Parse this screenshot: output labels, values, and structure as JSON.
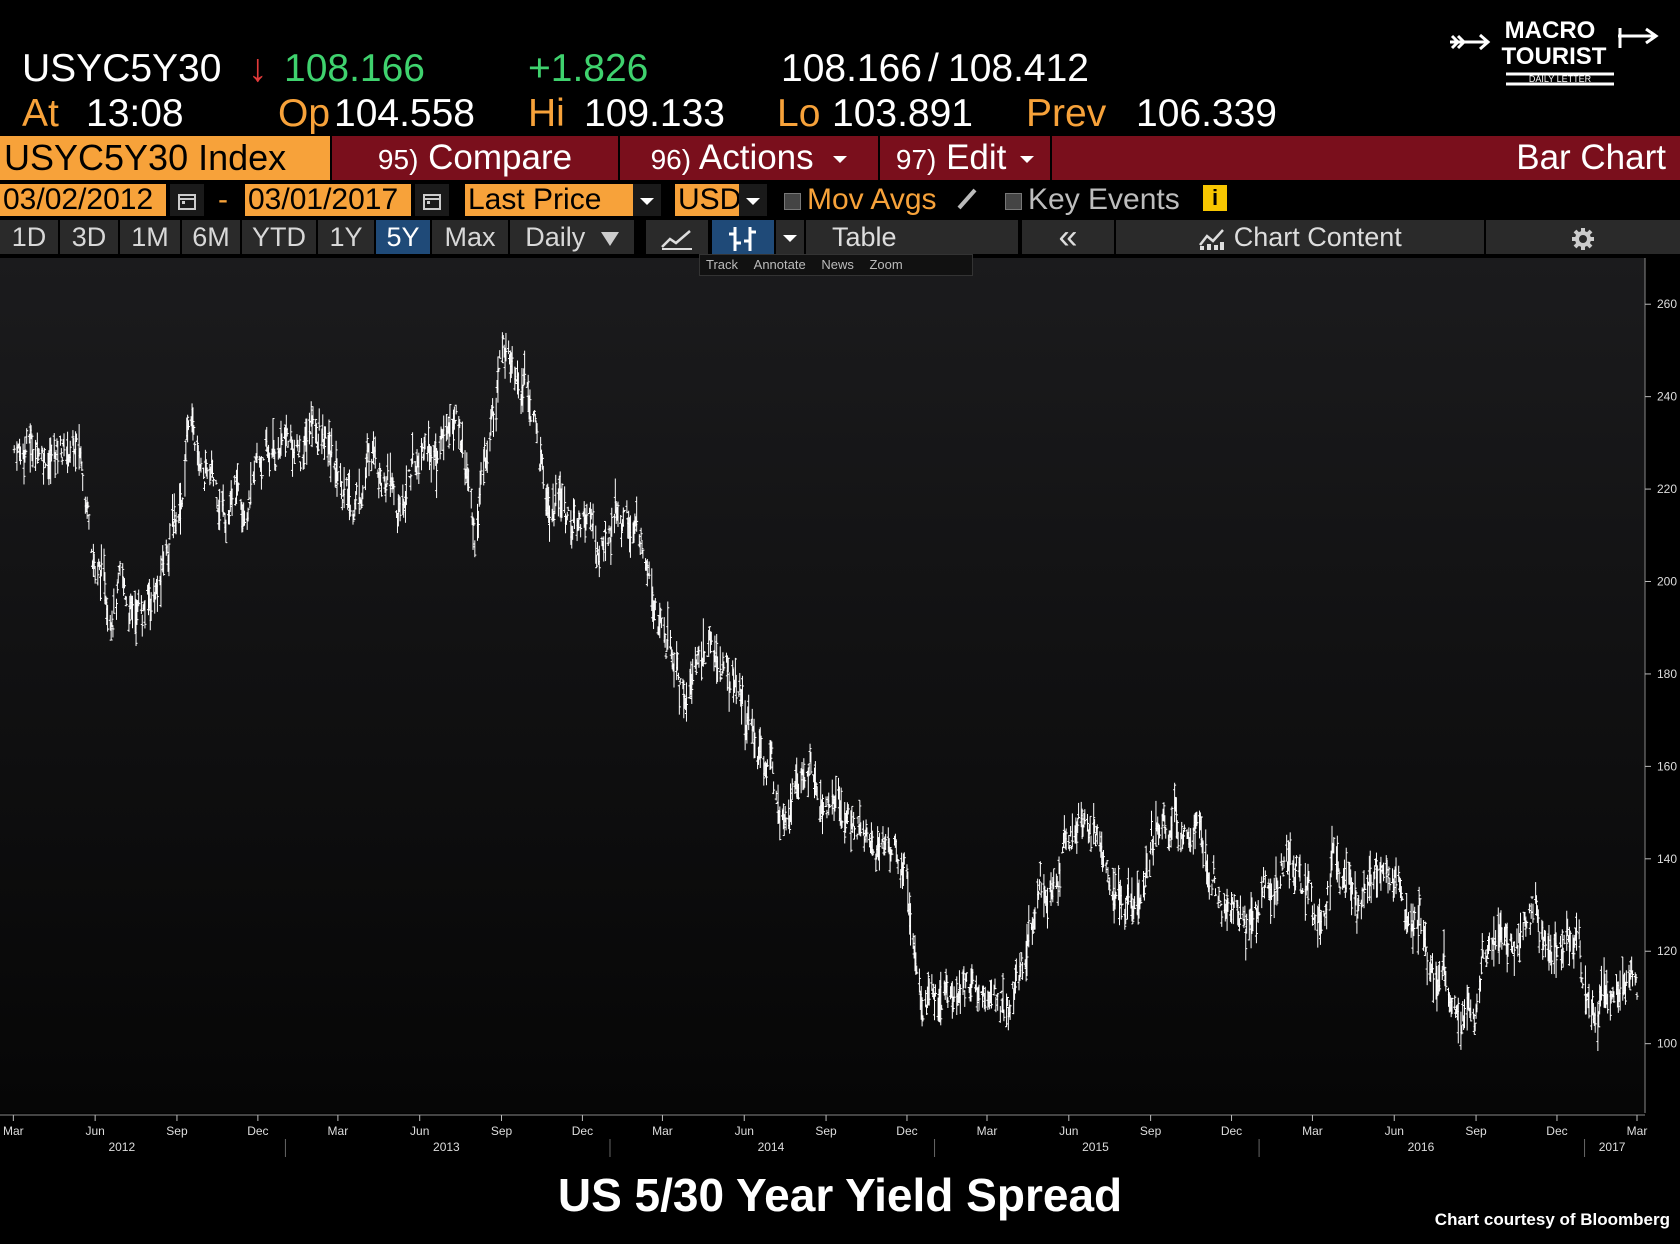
{
  "quote": {
    "ticker": "USYC5Y30",
    "arrow": "↓",
    "last": "108.166",
    "change": "+1.826",
    "bid": "108.166",
    "ask": "108.412",
    "sep": "/",
    "at_label": "At",
    "at_time": "13:08",
    "op_label": "Op",
    "op": "104.558",
    "hi_label": "Hi",
    "hi": "109.133",
    "lo_label": "Lo",
    "lo": "103.891",
    "prev_label": "Prev",
    "prev": "106.339"
  },
  "logo": {
    "line1": "MACRO",
    "line2": "TOURIST",
    "line3": "DAILY LETTER"
  },
  "menu": {
    "security": "USYC5Y30 Index",
    "compare_num": "95)",
    "compare": "Compare",
    "actions_num": "96)",
    "actions": "Actions",
    "edit_num": "97)",
    "edit": "Edit",
    "chart_type": "Bar Chart"
  },
  "controls": {
    "start_date": "03/02/2012",
    "dash": "-",
    "end_date": "03/01/2017",
    "field": "Last Price",
    "currency": "USD",
    "mov_avgs": "Mov Avgs",
    "key_events": "Key Events",
    "info": "i"
  },
  "periods": [
    "1D",
    "3D",
    "1M",
    "6M",
    "YTD",
    "1Y",
    "5Y",
    "Max"
  ],
  "selected_period": "5Y",
  "frequency": "Daily",
  "toolbar": {
    "table": "Table",
    "collapse": "«",
    "chart_content": "Chart Content",
    "mini_tools": [
      "Track",
      "Annotate",
      "News",
      "Zoom"
    ]
  },
  "chart_data": {
    "type": "bar",
    "title": "US 5/30 Year Yield Spread",
    "courtesy": "Chart courtesy of Bloomberg",
    "bar_color": "#ffffff",
    "background": "#0d0d0d",
    "ylim": [
      85,
      270
    ],
    "y_ticks": [
      100,
      120,
      140,
      160,
      180,
      200,
      220,
      240,
      260
    ],
    "x_range": [
      "2012-02-15",
      "2017-03-10"
    ],
    "x_month_ticks": [
      {
        "date": "2012-03-01",
        "label": "Mar"
      },
      {
        "date": "2012-06-01",
        "label": "Jun"
      },
      {
        "date": "2012-09-01",
        "label": "Sep"
      },
      {
        "date": "2012-12-01",
        "label": "Dec"
      },
      {
        "date": "2013-03-01",
        "label": "Mar"
      },
      {
        "date": "2013-06-01",
        "label": "Jun"
      },
      {
        "date": "2013-09-01",
        "label": "Sep"
      },
      {
        "date": "2013-12-01",
        "label": "Dec"
      },
      {
        "date": "2014-03-01",
        "label": "Mar"
      },
      {
        "date": "2014-06-01",
        "label": "Jun"
      },
      {
        "date": "2014-09-01",
        "label": "Sep"
      },
      {
        "date": "2014-12-01",
        "label": "Dec"
      },
      {
        "date": "2015-03-01",
        "label": "Mar"
      },
      {
        "date": "2015-06-01",
        "label": "Jun"
      },
      {
        "date": "2015-09-01",
        "label": "Sep"
      },
      {
        "date": "2015-12-01",
        "label": "Dec"
      },
      {
        "date": "2016-03-01",
        "label": "Mar"
      },
      {
        "date": "2016-06-01",
        "label": "Jun"
      },
      {
        "date": "2016-09-01",
        "label": "Sep"
      },
      {
        "date": "2016-12-01",
        "label": "Dec"
      },
      {
        "date": "2017-03-01",
        "label": "Mar"
      }
    ],
    "x_year_labels": [
      {
        "date": "2012-07-01",
        "label": "2012"
      },
      {
        "date": "2013-07-01",
        "label": "2013"
      },
      {
        "date": "2014-07-01",
        "label": "2014"
      },
      {
        "date": "2015-07-01",
        "label": "2015"
      },
      {
        "date": "2016-07-01",
        "label": "2016"
      },
      {
        "date": "2017-02-01",
        "label": "2017"
      }
    ],
    "x_year_dividers": [
      "2013-01-01",
      "2014-01-01",
      "2015-01-01",
      "2016-01-01",
      "2017-01-01"
    ],
    "series": [
      {
        "x": [
          "2012-03-02",
          "2012-03-23",
          "2012-04-13",
          "2012-05-04",
          "2012-05-18",
          "2012-06-01",
          "2012-06-15",
          "2012-06-29",
          "2012-07-13",
          "2012-07-27",
          "2012-08-10",
          "2012-08-24",
          "2012-09-07",
          "2012-09-14",
          "2012-09-28",
          "2012-10-12",
          "2012-10-26",
          "2012-11-09",
          "2012-11-23",
          "2012-12-07",
          "2012-12-21",
          "2013-01-04",
          "2013-01-18",
          "2013-02-01",
          "2013-02-15",
          "2013-03-01",
          "2013-03-15",
          "2013-03-29",
          "2013-04-12",
          "2013-04-26",
          "2013-05-10",
          "2013-05-24",
          "2013-06-07",
          "2013-06-21",
          "2013-07-05",
          "2013-07-19",
          "2013-08-02",
          "2013-08-16",
          "2013-08-30",
          "2013-09-13",
          "2013-09-27",
          "2013-10-11",
          "2013-10-25",
          "2013-11-08",
          "2013-11-22",
          "2013-12-06",
          "2013-12-20",
          "2014-01-03",
          "2014-01-17",
          "2014-01-31",
          "2014-02-14",
          "2014-02-28",
          "2014-03-14",
          "2014-03-28",
          "2014-04-11",
          "2014-04-25",
          "2014-05-09",
          "2014-05-23",
          "2014-06-06",
          "2014-06-20",
          "2014-07-04",
          "2014-07-18",
          "2014-08-01",
          "2014-08-15",
          "2014-08-29",
          "2014-09-12",
          "2014-09-26",
          "2014-10-10",
          "2014-10-24",
          "2014-11-07",
          "2014-11-21",
          "2014-12-05",
          "2014-12-19",
          "2015-01-02",
          "2015-01-16",
          "2015-01-30",
          "2015-02-13",
          "2015-02-27",
          "2015-03-13",
          "2015-03-27",
          "2015-04-10",
          "2015-04-24",
          "2015-05-08",
          "2015-05-22",
          "2015-06-05",
          "2015-06-19",
          "2015-07-03",
          "2015-07-17",
          "2015-07-31",
          "2015-08-14",
          "2015-08-28",
          "2015-09-11",
          "2015-09-25",
          "2015-10-09",
          "2015-10-23",
          "2015-11-06",
          "2015-11-20",
          "2015-12-04",
          "2015-12-18",
          "2016-01-01",
          "2016-01-15",
          "2016-01-29",
          "2016-02-12",
          "2016-02-26",
          "2016-03-11",
          "2016-03-25",
          "2016-04-08",
          "2016-04-22",
          "2016-05-06",
          "2016-05-20",
          "2016-06-03",
          "2016-06-17",
          "2016-07-01",
          "2016-07-15",
          "2016-07-29",
          "2016-08-12",
          "2016-08-26",
          "2016-09-09",
          "2016-09-23",
          "2016-10-07",
          "2016-10-21",
          "2016-11-04",
          "2016-11-18",
          "2016-12-02",
          "2016-12-16",
          "2016-12-30",
          "2017-01-13",
          "2017-01-27",
          "2017-02-10",
          "2017-02-24",
          "2017-03-01"
        ],
        "values": [
          229,
          230,
          228,
          229,
          226,
          205,
          196,
          199,
          193,
          195,
          198,
          210,
          220,
          236,
          225,
          221,
          216,
          219,
          220,
          226,
          228,
          231,
          226,
          236,
          229,
          224,
          216,
          222,
          231,
          222,
          213,
          226,
          230,
          228,
          236,
          232,
          210,
          230,
          248,
          252,
          245,
          230,
          215,
          218,
          212,
          216,
          206,
          212,
          215,
          210,
          207,
          190,
          181,
          175,
          184,
          186,
          180,
          178,
          168,
          163,
          158,
          154,
          156,
          160,
          150,
          153,
          150,
          145,
          146,
          144,
          142,
          130,
          112,
          110,
          109,
          110,
          114,
          111,
          108,
          112,
          118,
          128,
          136,
          142,
          144,
          148,
          143,
          136,
          130,
          128,
          140,
          148,
          145,
          150,
          148,
          135,
          128,
          128,
          126,
          128,
          136,
          140,
          138,
          130,
          130,
          140,
          135,
          128,
          135,
          138,
          133,
          130,
          127,
          112,
          113,
          110,
          105,
          115,
          122,
          120,
          122,
          130,
          125,
          120,
          122,
          115,
          110,
          110,
          112,
          113,
          108
        ]
      }
    ]
  }
}
